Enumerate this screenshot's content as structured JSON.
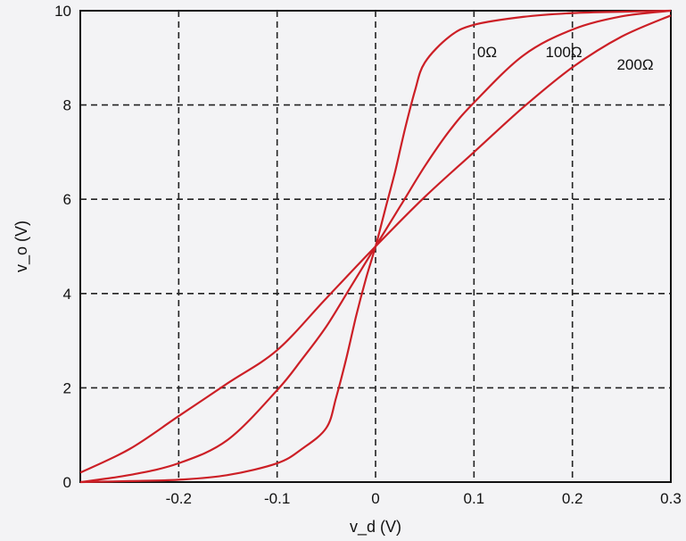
{
  "chart_data": {
    "type": "line",
    "xlabel": "v_d (V)",
    "ylabel": "v_o (V)",
    "xlim": [
      -0.3,
      0.3
    ],
    "ylim": [
      0,
      10
    ],
    "x_ticks": [
      -0.2,
      -0.1,
      0,
      0.1,
      0.2,
      0.3
    ],
    "x_tick_labels": [
      "-0.2",
      "-0.1",
      "0",
      "0.1",
      "0.2",
      "0.3"
    ],
    "y_ticks": [
      0,
      2,
      4,
      6,
      8,
      10
    ],
    "y_tick_labels": [
      "0",
      "2",
      "4",
      "6",
      "8",
      "10"
    ],
    "grid": true,
    "series_color": "#cc1f26",
    "series": [
      {
        "name": "0Ω",
        "x": [
          -0.3,
          -0.25,
          -0.2,
          -0.15,
          -0.1,
          -0.075,
          -0.05,
          -0.04,
          -0.03,
          -0.02,
          -0.01,
          0,
          0.01,
          0.02,
          0.03,
          0.04,
          0.05,
          0.075,
          0.1,
          0.15,
          0.2,
          0.25,
          0.3
        ],
        "values": [
          0.0,
          0.02,
          0.05,
          0.15,
          0.4,
          0.7,
          1.15,
          1.8,
          2.6,
          3.5,
          4.3,
          5.0,
          5.8,
          6.6,
          7.5,
          8.3,
          8.9,
          9.45,
          9.7,
          9.87,
          9.95,
          9.98,
          10.0
        ]
      },
      {
        "name": "100Ω",
        "x": [
          -0.3,
          -0.25,
          -0.2,
          -0.15,
          -0.1,
          -0.075,
          -0.05,
          -0.025,
          0,
          0.025,
          0.05,
          0.075,
          0.1,
          0.15,
          0.2,
          0.25,
          0.3
        ],
        "values": [
          0.0,
          0.15,
          0.4,
          0.9,
          1.95,
          2.6,
          3.3,
          4.15,
          5.0,
          5.85,
          6.7,
          7.45,
          8.05,
          9.05,
          9.6,
          9.88,
          10.0
        ]
      },
      {
        "name": "200Ω",
        "x": [
          -0.3,
          -0.25,
          -0.2,
          -0.15,
          -0.1,
          -0.05,
          0,
          0.05,
          0.1,
          0.15,
          0.2,
          0.25,
          0.3
        ],
        "values": [
          0.2,
          0.7,
          1.4,
          2.1,
          2.8,
          3.9,
          5.0,
          6.05,
          7.0,
          7.95,
          8.8,
          9.45,
          9.9
        ]
      }
    ]
  }
}
